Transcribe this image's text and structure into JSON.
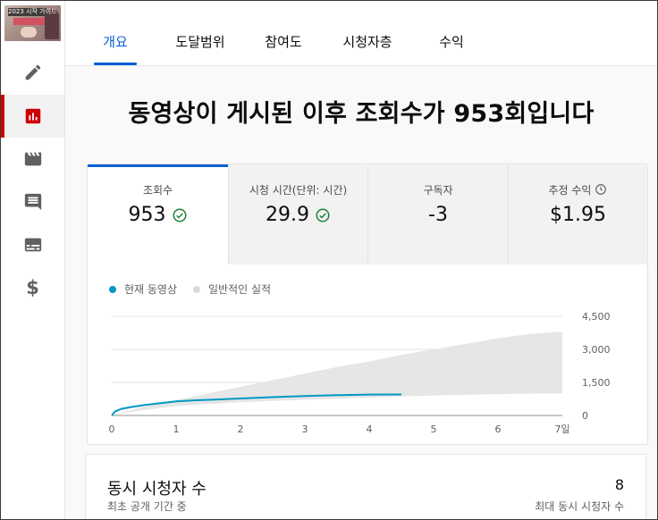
{
  "sidebar": {
    "thumbnail_text": "2023 시작 가이드",
    "items": [
      {
        "name": "edit",
        "icon": "pencil-icon"
      },
      {
        "name": "analytics",
        "icon": "analytics-icon",
        "active": true
      },
      {
        "name": "editor",
        "icon": "clapperboard-icon"
      },
      {
        "name": "comments",
        "icon": "comment-icon"
      },
      {
        "name": "subtitles",
        "icon": "subtitles-icon"
      },
      {
        "name": "monetization",
        "icon": "dollar-icon",
        "glyph": "$"
      }
    ]
  },
  "tabs": [
    "개요",
    "도달범위",
    "참여도",
    "시청자층",
    "수익"
  ],
  "active_tab": "개요",
  "headline": "동영상이 게시된 이후 조회수가 953회입니다",
  "metrics": [
    {
      "label": "조회수",
      "value": "953",
      "status": "check"
    },
    {
      "label": "시청 시간(단위: 시간)",
      "value": "29.9",
      "status": "check"
    },
    {
      "label": "구독자",
      "value": "-3"
    },
    {
      "label": "추정 수익",
      "value": "$1.95",
      "info": "clock-icon"
    }
  ],
  "legend": {
    "current": "현재 동영상",
    "typical": "일반적인 실적"
  },
  "colors": {
    "accent": "#065fd4",
    "line": "#0099c2",
    "band": "#e6e6e6",
    "check": "#188038",
    "active_nav": "#cc0000"
  },
  "chart_data": {
    "type": "area",
    "x_ticks": [
      "0",
      "1",
      "2",
      "3",
      "4",
      "5",
      "6",
      "7일"
    ],
    "y_ticks": [
      "0",
      "1,500",
      "3,000",
      "4,500"
    ],
    "ylim": [
      0,
      4500
    ],
    "xlim": [
      0,
      7
    ],
    "grid": true,
    "series": [
      {
        "name": "현재 동영상",
        "x": [
          0,
          0.05,
          0.15,
          0.3,
          0.5,
          0.8,
          1.0,
          1.3,
          1.6,
          2.0,
          2.5,
          3.0,
          3.5,
          4.0,
          4.5
        ],
        "y": [
          0,
          180,
          300,
          380,
          470,
          570,
          640,
          690,
          720,
          770,
          830,
          880,
          920,
          950,
          953
        ]
      },
      {
        "name": "일반적인 실적",
        "x": [
          0,
          0.5,
          1,
          1.5,
          2,
          2.5,
          3,
          3.5,
          4,
          4.5,
          5,
          5.5,
          6,
          6.5,
          7
        ],
        "low": [
          0,
          250,
          420,
          520,
          600,
          660,
          710,
          760,
          810,
          860,
          900,
          940,
          970,
          990,
          1000
        ],
        "high": [
          0,
          400,
          700,
          1000,
          1300,
          1600,
          1900,
          2200,
          2450,
          2750,
          3000,
          3250,
          3500,
          3700,
          3800
        ]
      }
    ]
  },
  "live_viewers": {
    "title": "동시 시청자 수",
    "subtitle": "최초 공개 기간 중",
    "value": "8",
    "value_label": "최대 동시 시청자 수"
  }
}
